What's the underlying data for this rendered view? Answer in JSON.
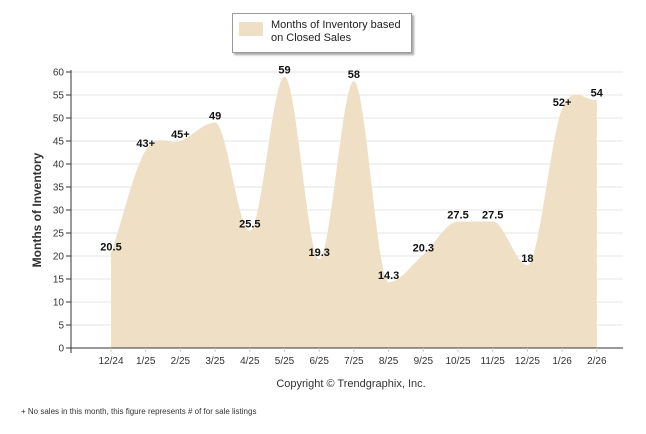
{
  "chart_data": {
    "type": "area",
    "title": "",
    "xlabel": "",
    "ylabel": "Months of Inventory",
    "ylim": [
      0,
      60
    ],
    "yticks": [
      0,
      5,
      10,
      15,
      20,
      25,
      30,
      35,
      40,
      45,
      50,
      55,
      60
    ],
    "categories": [
      "12/24",
      "1/25",
      "2/25",
      "3/25",
      "4/25",
      "5/25",
      "6/25",
      "7/25",
      "8/25",
      "9/25",
      "10/25",
      "11/25",
      "12/25",
      "1/26",
      "2/26"
    ],
    "series": [
      {
        "name": "Months of Inventory based on Closed Sales",
        "values": [
          20.5,
          43,
          45,
          49,
          25.5,
          59,
          19.3,
          58,
          14.3,
          20.3,
          27.5,
          27.5,
          18,
          52,
          54
        ],
        "labels": [
          "20.5",
          "43+",
          "45+",
          "49",
          "25.5",
          "59",
          "19.3",
          "58",
          "14.3",
          "20.3",
          "27.5",
          "27.5",
          "18",
          "52+",
          "54"
        ]
      }
    ],
    "legend": {
      "position": "top-center",
      "entries": [
        "Months of Inventory based on Closed Sales"
      ]
    },
    "grid": true,
    "fill_color": "#efdfc4",
    "copyright": "Copyright © Trendgraphix, Inc.",
    "footnote": "+ No sales in this month, this figure represents # of for sale listings"
  }
}
